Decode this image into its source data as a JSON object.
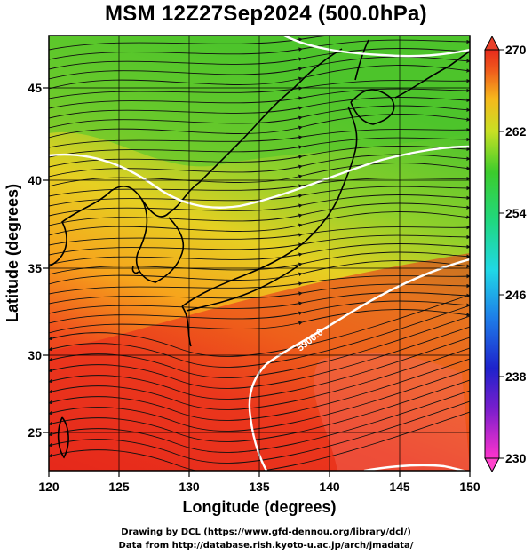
{
  "title": "MSM 12Z27Sep2024 (500.0hPa)",
  "x_axis": {
    "label": "Longitude (degrees)",
    "ticks": [
      "120",
      "125",
      "130",
      "135",
      "140",
      "145",
      "150"
    ]
  },
  "y_axis": {
    "label": "Latitude  (degrees)",
    "ticks": [
      "25",
      "30",
      "35",
      "40",
      "45"
    ]
  },
  "colorbar": {
    "labels": [
      "270",
      "262",
      "254",
      "246",
      "238",
      "230"
    ]
  },
  "contour_label": "5900.0",
  "footer": {
    "line1": "Drawing by DCL (https://www.gfd-dennou.org/library/dcl/)",
    "line2": "Data from http://database.rish.kyoto-u.ac.jp/arch/jmadata/"
  },
  "map_data": {
    "lon_range": [
      120,
      150
    ],
    "lat_range": [
      22.5,
      47.5
    ],
    "variable": "temperature (K)",
    "color_range": [
      230,
      270
    ],
    "wind": "streamlines",
    "height_contour": "white lines"
  },
  "colors": {
    "warm": "#e8281c",
    "mid": "#f5a21b",
    "cool": "#62cc2e",
    "contour": "#ffffff"
  }
}
